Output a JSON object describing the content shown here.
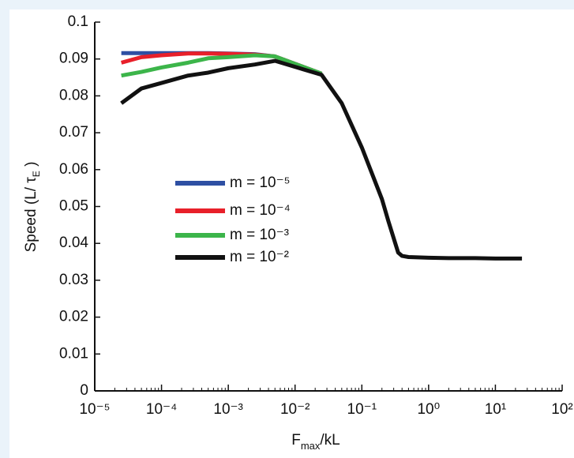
{
  "chart_data": {
    "type": "line",
    "xlabel": [
      "F",
      "max",
      "/kL"
    ],
    "ylabel": [
      "Speed (L/ τ",
      "E",
      " )"
    ],
    "xscale": "log",
    "x": [
      2.5e-05,
      5e-05,
      0.0001,
      0.00025,
      0.0005,
      0.001,
      0.0025,
      0.005,
      0.025,
      0.05,
      0.1,
      0.2,
      0.25,
      0.35,
      0.4,
      0.5,
      1,
      2,
      5,
      10,
      25
    ],
    "series": [
      {
        "name": "m = 10⁻⁵",
        "color": "#2e4fa3",
        "values": [
          0.0916,
          0.0916,
          0.0916,
          0.0916,
          0.0916,
          0.0915,
          0.0913,
          0.0907,
          0.086,
          null,
          null,
          null,
          null,
          null,
          null,
          null,
          null,
          null,
          null,
          null,
          null
        ]
      },
      {
        "name": "m = 10⁻⁴",
        "color": "#e8202a",
        "values": [
          0.089,
          0.0905,
          0.091,
          0.0915,
          0.0915,
          0.0914,
          0.0912,
          0.0907,
          0.086,
          null,
          null,
          null,
          null,
          null,
          null,
          null,
          null,
          null,
          null,
          null,
          null
        ]
      },
      {
        "name": "m = 10⁻³",
        "color": "#3cb54a",
        "values": [
          0.0855,
          0.0865,
          0.0877,
          0.089,
          0.0902,
          0.0905,
          0.091,
          0.0907,
          0.086,
          null,
          null,
          null,
          null,
          null,
          null,
          null,
          null,
          null,
          null,
          null,
          null
        ]
      },
      {
        "name": "m = 10⁻²",
        "color": "#111111",
        "values": [
          0.078,
          0.082,
          0.0835,
          0.0855,
          0.0863,
          0.0875,
          0.0885,
          0.0895,
          0.0857,
          0.078,
          0.066,
          0.052,
          0.046,
          0.0375,
          0.0366,
          0.0363,
          0.0361,
          0.036,
          0.036,
          0.0359,
          0.0359
        ]
      }
    ],
    "xlim": [
      1e-05,
      100
    ],
    "xticks": [
      {
        "value": 1e-05,
        "label": "10⁻⁵"
      },
      {
        "value": 0.0001,
        "label": "10⁻⁴"
      },
      {
        "value": 0.001,
        "label": "10⁻³"
      },
      {
        "value": 0.01,
        "label": "10⁻²"
      },
      {
        "value": 0.1,
        "label": "10⁻¹"
      },
      {
        "value": 1,
        "label": "10⁰"
      },
      {
        "value": 10,
        "label": "10¹"
      },
      {
        "value": 100,
        "label": "10²"
      }
    ],
    "ylim": [
      0,
      0.1
    ],
    "yticks": [
      0,
      0.01,
      0.02,
      0.03,
      0.04,
      0.05,
      0.06,
      0.07,
      0.08,
      0.09,
      0.1
    ],
    "grid": false
  }
}
